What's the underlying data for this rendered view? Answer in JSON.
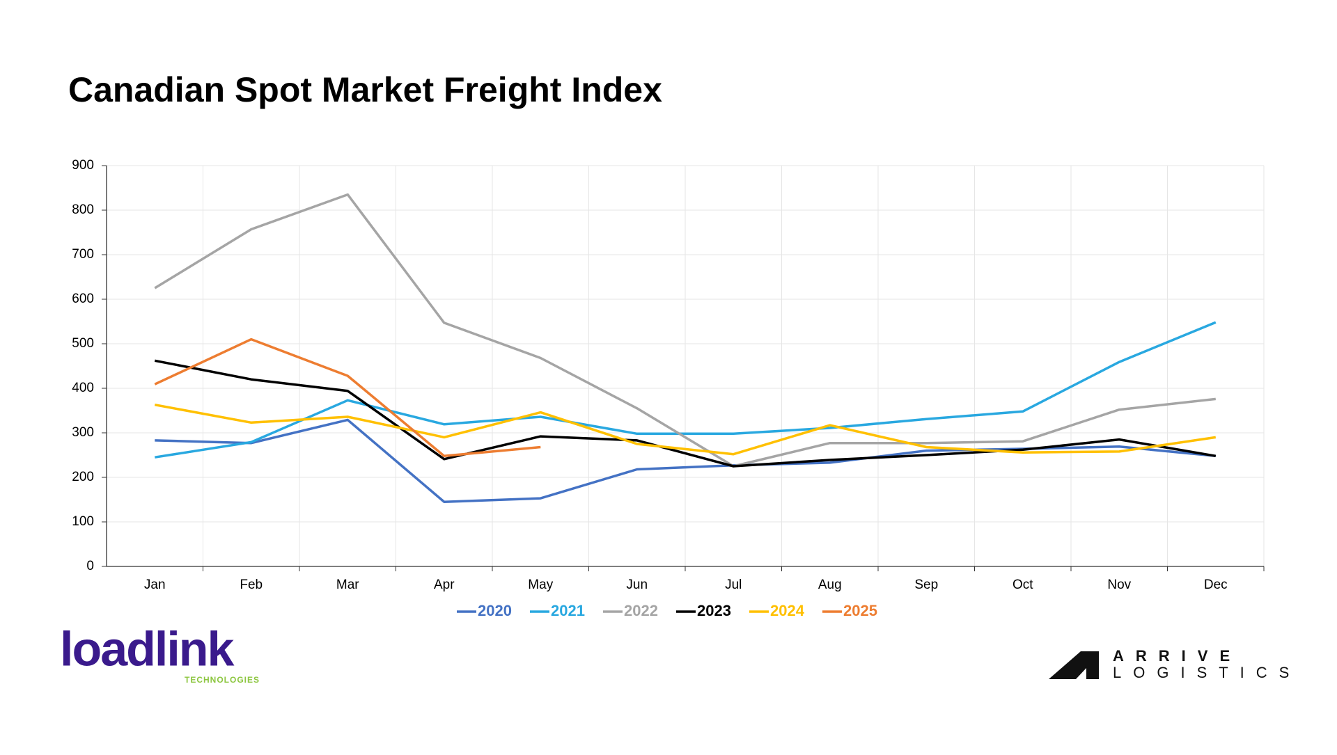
{
  "chart_data": {
    "type": "line",
    "title": "Canadian Spot Market Freight Index",
    "categories": [
      "Jan",
      "Feb",
      "Mar",
      "Apr",
      "May",
      "Jun",
      "Jul",
      "Aug",
      "Sep",
      "Oct",
      "Nov",
      "Dec"
    ],
    "series": [
      {
        "name": "2020",
        "color": "#4472c4",
        "values": [
          283,
          277,
          329,
          145,
          153,
          218,
          227,
          233,
          260,
          264,
          269,
          248
        ]
      },
      {
        "name": "2021",
        "color": "#29a8e0",
        "values": [
          245,
          279,
          373,
          319,
          336,
          298,
          298,
          311,
          331,
          348,
          459,
          548
        ]
      },
      {
        "name": "2022",
        "color": "#a5a5a5",
        "values": [
          625,
          757,
          835,
          547,
          468,
          355,
          225,
          277,
          277,
          281,
          352,
          376
        ]
      },
      {
        "name": "2023",
        "color": "#000000",
        "values": [
          462,
          420,
          394,
          241,
          292,
          283,
          225,
          239,
          250,
          262,
          285,
          248
        ]
      },
      {
        "name": "2024",
        "color": "#ffc000",
        "values": [
          363,
          323,
          336,
          290,
          346,
          275,
          252,
          317,
          268,
          256,
          258,
          290
        ]
      },
      {
        "name": "2025",
        "color": "#ed7d31",
        "values": [
          409,
          510,
          428,
          248,
          268,
          null,
          null,
          null,
          null,
          null,
          null,
          null
        ]
      }
    ],
    "ylim": [
      0,
      900
    ],
    "yticks": [
      0,
      100,
      200,
      300,
      400,
      500,
      600,
      700,
      800,
      900
    ],
    "grid": true,
    "legend": "bottom"
  },
  "logos": {
    "left": "loadlink",
    "left_sub": "TECHNOLOGIES",
    "right_top": "ARRIVE",
    "right_bottom": "LOGISTICS"
  }
}
